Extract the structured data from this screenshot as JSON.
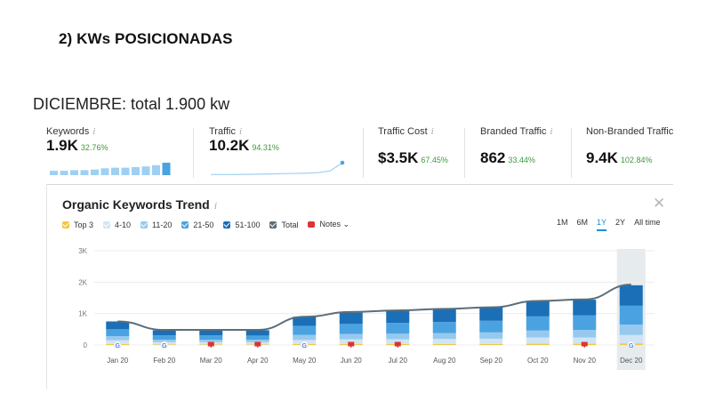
{
  "heading": "2)   KWs POSICIONADAS",
  "subtitle": "DICIEMBRE: total 1.900 kw",
  "metrics": [
    {
      "label": "Keywords",
      "value": "1.9K",
      "change": "32.76%"
    },
    {
      "label": "Traffic",
      "value": "10.2K",
      "change": "94.31%"
    },
    {
      "label": "Traffic Cost",
      "value": "$3.5K",
      "change": "67.45%"
    },
    {
      "label": "Branded Traffic",
      "value": "862",
      "change": "33.44%"
    },
    {
      "label": "Non-Branded Traffic",
      "value": "9.4K",
      "change": "102.84%"
    }
  ],
  "info_glyph": "i",
  "panel": {
    "title": "Organic Keywords Trend",
    "close": "✕",
    "legend": [
      {
        "label": "Top 3",
        "color": "#f2c744"
      },
      {
        "label": "4-10",
        "color": "#cfe5f5"
      },
      {
        "label": "11-20",
        "color": "#97c9ee"
      },
      {
        "label": "21-50",
        "color": "#4aa3e0"
      },
      {
        "label": "51-100",
        "color": "#1a6fb7"
      },
      {
        "label": "Total",
        "color": "#5b6e7a"
      }
    ],
    "notes_label": "Notes ⌄",
    "ranges": [
      {
        "label": "1M",
        "active": false
      },
      {
        "label": "6M",
        "active": false
      },
      {
        "label": "1Y",
        "active": true
      },
      {
        "label": "2Y",
        "active": false
      },
      {
        "label": "All time",
        "active": false
      }
    ]
  },
  "chart_data": {
    "type": "bar",
    "y_ticks": [
      "0",
      "1K",
      "2K",
      "3K"
    ],
    "ylim": [
      0,
      3000
    ],
    "categories": [
      "Jan 20",
      "Feb 20",
      "Mar 20",
      "Apr 20",
      "May 20",
      "Jun 20",
      "Jul 20",
      "Aug 20",
      "Sep 20",
      "Oct 20",
      "Nov 20",
      "Dec 20"
    ],
    "series": [
      {
        "name": "Top 3",
        "values": [
          30,
          20,
          20,
          20,
          30,
          30,
          30,
          30,
          30,
          40,
          40,
          50
        ]
      },
      {
        "name": "4-10",
        "values": [
          120,
          70,
          70,
          70,
          130,
          150,
          150,
          160,
          170,
          200,
          200,
          270
        ]
      },
      {
        "name": "11-20",
        "values": [
          130,
          80,
          80,
          80,
          160,
          170,
          180,
          190,
          200,
          220,
          240,
          330
        ]
      },
      {
        "name": "21-50",
        "values": [
          220,
          140,
          140,
          130,
          290,
          320,
          340,
          350,
          370,
          450,
          460,
          600
        ]
      },
      {
        "name": "51-100",
        "values": [
          250,
          160,
          170,
          170,
          290,
          360,
          380,
          420,
          430,
          480,
          500,
          650
        ]
      }
    ],
    "total": [
      750,
      480,
      480,
      480,
      900,
      1050,
      1100,
      1150,
      1200,
      1400,
      1450,
      1920
    ],
    "highlighted_category": "Dec 20",
    "markers": [
      "google",
      "google",
      "note",
      "note",
      "google",
      "note",
      "note",
      "",
      "",
      "",
      "note",
      "google"
    ],
    "sparkline_keywords": [
      0.35,
      0.35,
      0.4,
      0.4,
      0.45,
      0.55,
      0.6,
      0.6,
      0.65,
      0.7,
      0.8,
      1.0
    ],
    "sparkline_traffic": [
      0.05,
      0.05,
      0.05,
      0.06,
      0.08,
      0.1,
      0.12,
      0.14,
      0.16,
      0.2,
      0.35,
      1.0
    ],
    "colors": {
      "bar_dark": "#1a6fb7",
      "line": "#5b6e7a",
      "sparkline": "#9fd0f2",
      "traffic_line": "#4aa3e0"
    }
  }
}
